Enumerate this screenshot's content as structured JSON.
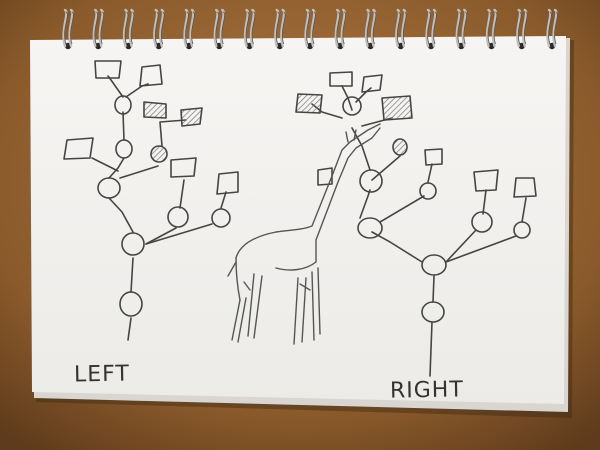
{
  "scene": {
    "subject": "spiral-notebook-pencil-sketch",
    "paper_color": "#f4f3f1",
    "table_color": "#8a5a2b",
    "pencil_color": "#444444"
  },
  "labels": {
    "left": "LEFT",
    "right": "RIGHT"
  }
}
